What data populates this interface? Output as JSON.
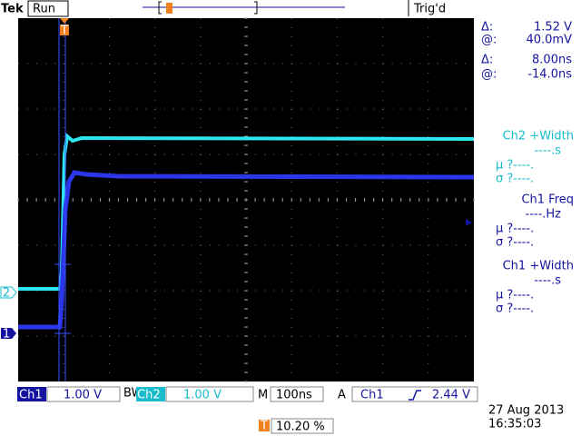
{
  "header": {
    "brand": "Tek",
    "status": "Run",
    "trigger_status": "Trig'd"
  },
  "cursors": [
    {
      "symbol": "Δ:",
      "value": "1.52 V"
    },
    {
      "symbol": "@:",
      "value": "40.0mV"
    },
    {
      "symbol": "Δ:",
      "value": "8.00ns"
    },
    {
      "symbol": "@:",
      "value": "-14.0ns"
    }
  ],
  "measurements": [
    {
      "title": "Ch2 +Width",
      "value": "----.s",
      "mean": "μ ?----.",
      "std": "σ ?----."
    },
    {
      "title": "Ch1 Freq",
      "value": "----.Hz",
      "mean": "μ ?----.",
      "std": "σ ?----."
    },
    {
      "title": "Ch1 +Width",
      "value": "----.s",
      "mean": "μ ?----.",
      "std": "σ ?----."
    }
  ],
  "channel_markers": {
    "ch2": "2",
    "ch1": "1",
    "trigger": "T"
  },
  "status_bar": {
    "ch1_label": "Ch1",
    "ch1_scale": "1.00 V",
    "bw": "BW",
    "ch2_label": "Ch2",
    "ch2_scale": "1.00 V",
    "time_label": "M",
    "time_scale": "100ns",
    "trigger_label": "A",
    "trigger_source": "Ch1",
    "trigger_level": "2.44 V"
  },
  "date": "27 Aug 2013",
  "time": "16:35:03",
  "trigger_position": {
    "icon": "T",
    "value": "10.20 %"
  }
}
